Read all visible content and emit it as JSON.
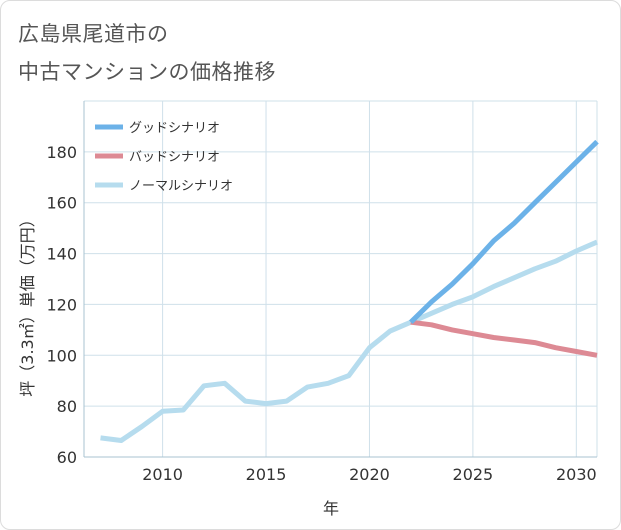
{
  "title_line1": "広島県尾道市の",
  "title_line2": "中古マンションの価格推移",
  "chart_data": {
    "type": "line",
    "xlabel": "年",
    "ylabel": "坪（3.3㎡）単価（万円）",
    "xlim": [
      2006.2,
      2031
    ],
    "ylim": [
      60,
      200
    ],
    "xticks": [
      2010,
      2015,
      2020,
      2025,
      2030
    ],
    "yticks": [
      60,
      80,
      100,
      120,
      140,
      160,
      180
    ],
    "grid": true,
    "legend_position": "top-left",
    "series": [
      {
        "name": "グッドシナリオ",
        "color": "#6cb2e8",
        "x": [
          2022,
          2023,
          2024,
          2025,
          2026,
          2027,
          2028,
          2029,
          2030,
          2031
        ],
        "y": [
          113,
          121,
          128,
          136,
          145,
          152,
          160,
          168,
          176,
          184
        ]
      },
      {
        "name": "バッドシナリオ",
        "color": "#dd8a94",
        "x": [
          2022,
          2023,
          2024,
          2025,
          2026,
          2027,
          2028,
          2029,
          2030,
          2031
        ],
        "y": [
          113,
          112,
          110,
          108.5,
          107,
          106,
          105,
          103,
          101.5,
          100
        ]
      },
      {
        "name": "ノーマルシナリオ",
        "color": "#b6dcee",
        "x": [
          2007,
          2008,
          2009,
          2010,
          2011,
          2012,
          2013,
          2014,
          2015,
          2016,
          2017,
          2018,
          2019,
          2020,
          2021,
          2022,
          2023,
          2024,
          2025,
          2026,
          2027,
          2028,
          2029,
          2030,
          2031
        ],
        "y": [
          67.5,
          66.5,
          72,
          78,
          78.5,
          88,
          89,
          82,
          81,
          82,
          87.5,
          89,
          92,
          103,
          109.5,
          113,
          116.5,
          120,
          123,
          127,
          130.5,
          134,
          137,
          141,
          144.5
        ]
      }
    ]
  }
}
